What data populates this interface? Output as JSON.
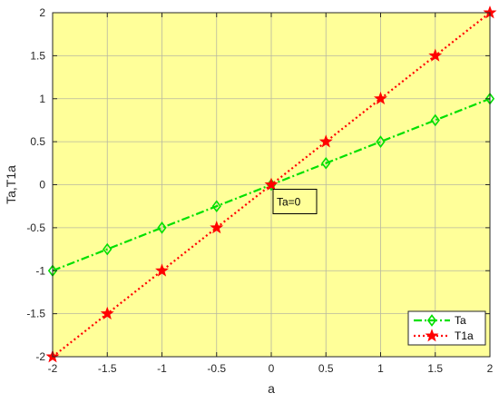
{
  "chart_data": {
    "type": "line",
    "xlabel": "a",
    "ylabel": "Ta,T1a",
    "xlim": [
      -2,
      2
    ],
    "ylim": [
      -2,
      2
    ],
    "x_ticks": [
      -2,
      -1.5,
      -1,
      -0.5,
      0,
      0.5,
      1,
      1.5,
      2
    ],
    "y_ticks": [
      -2,
      -1.5,
      -1,
      -0.5,
      0,
      0.5,
      1,
      1.5,
      2
    ],
    "x": [
      -2,
      -1.5,
      -1,
      -0.5,
      0,
      0.5,
      1,
      1.5,
      2
    ],
    "grid": true,
    "background": "#ffff99",
    "legend_position": "bottom-right",
    "series": [
      {
        "name": "Ta",
        "values": [
          -1,
          -0.75,
          -0.5,
          -0.25,
          0,
          0.25,
          0.5,
          0.75,
          1
        ],
        "color": "#00e000",
        "line_style": "dash-dot",
        "marker": "diamond"
      },
      {
        "name": "T1a",
        "values": [
          -2,
          -1.5,
          -1,
          -0.5,
          0,
          0.5,
          1,
          1.5,
          2
        ],
        "color": "#ff0000",
        "line_style": "dotted",
        "marker": "pentagram"
      }
    ],
    "annotations": [
      {
        "text": "Ta=0",
        "x": 0,
        "y": 0
      }
    ]
  }
}
